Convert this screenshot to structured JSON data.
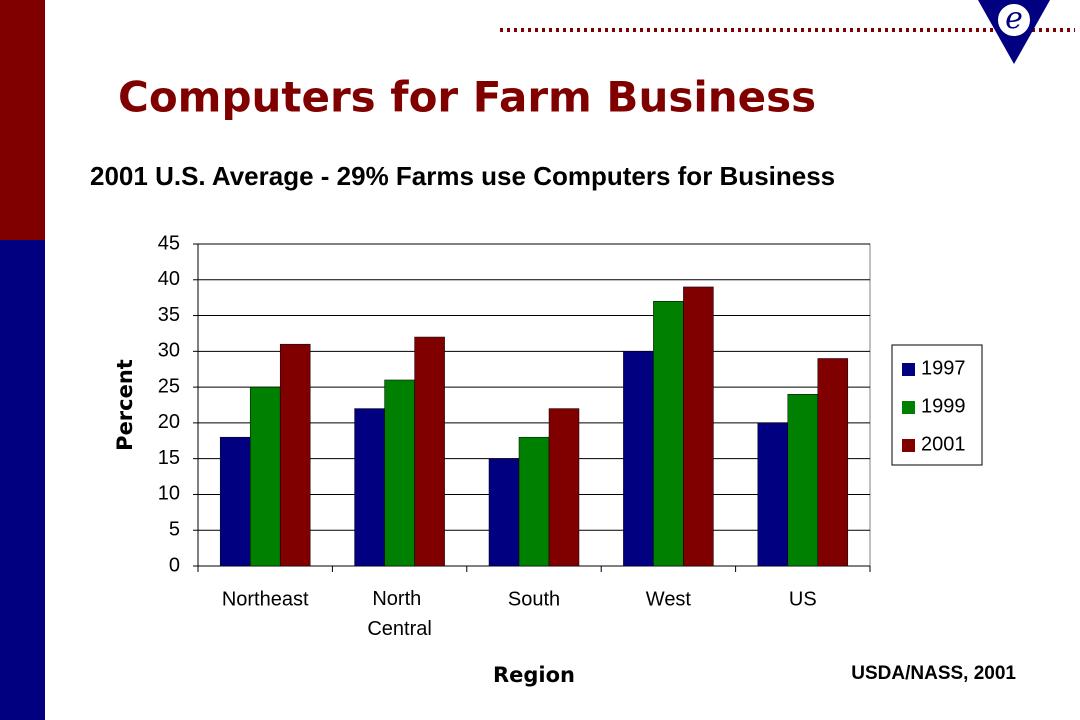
{
  "logo": "e",
  "chart_data": {
    "type": "bar",
    "title": "Computers for Farm Business",
    "subtitle": "2001 U.S. Average - 29% Farms use Computers for Business",
    "x_label": "Region",
    "y_label": "Percent",
    "source": "USDA/NASS, 2001",
    "categories": [
      "Northeast",
      "North Central",
      "South",
      "West",
      "US"
    ],
    "series": [
      {
        "name": "1997",
        "color": "#000080",
        "values": [
          18,
          22,
          15,
          30,
          20
        ]
      },
      {
        "name": "1999",
        "color": "#008000",
        "values": [
          25,
          26,
          18,
          37,
          24
        ]
      },
      {
        "name": "2001",
        "color": "#800000",
        "values": [
          31,
          32,
          22,
          39,
          29
        ]
      }
    ],
    "ylim": [
      0,
      45
    ],
    "yticks": [
      0,
      5,
      10,
      15,
      20,
      25,
      30,
      35,
      40,
      45
    ],
    "grid": true,
    "legend": "right"
  }
}
